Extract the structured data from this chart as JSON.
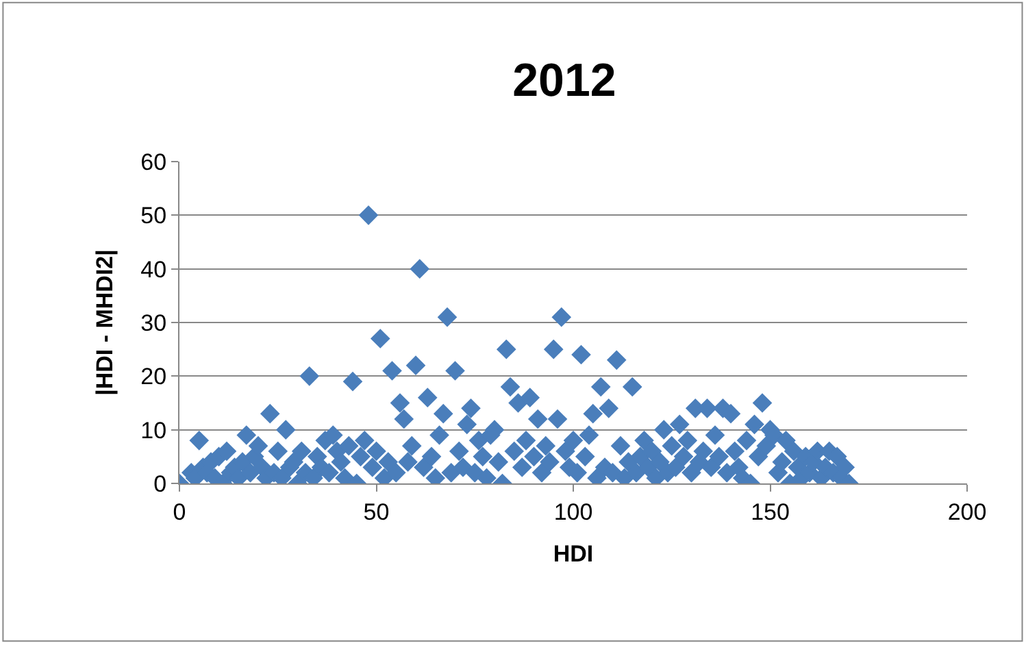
{
  "chart_data": {
    "type": "scatter",
    "title": "2012",
    "xlabel": "HDI",
    "ylabel": "|HDI - MHDI2|",
    "xlim": [
      0,
      200
    ],
    "xticks": [
      0,
      50,
      100,
      150,
      200
    ],
    "ylim": [
      0,
      60
    ],
    "yticks": [
      0,
      10,
      20,
      30,
      40,
      50,
      60
    ],
    "grid": "y",
    "marker": "diamond",
    "series": [
      {
        "color": "#4a7ebb",
        "x": [
          0,
          3,
          4,
          5,
          6,
          7,
          8,
          9,
          10,
          11,
          12,
          13,
          14,
          15,
          16,
          17,
          18,
          19,
          20,
          21,
          22,
          23,
          24,
          25,
          26,
          27,
          28,
          29,
          30,
          31,
          32,
          33,
          34,
          35,
          36,
          37,
          38,
          39,
          40,
          41,
          42,
          43,
          44,
          45,
          46,
          47,
          48,
          49,
          50,
          51,
          52,
          53,
          54,
          55,
          56,
          57,
          58,
          59,
          60,
          61,
          62,
          63,
          64,
          65,
          66,
          67,
          68,
          69,
          70,
          71,
          72,
          73,
          74,
          75,
          76,
          77,
          78,
          79,
          80,
          81,
          82,
          83,
          84,
          85,
          86,
          87,
          88,
          89,
          90,
          91,
          92,
          93,
          94,
          95,
          96,
          97,
          98,
          99,
          100,
          101,
          102,
          103,
          104,
          105,
          106,
          107,
          108,
          109,
          110,
          111,
          112,
          113,
          114,
          115,
          116,
          117,
          118,
          119,
          120,
          121,
          122,
          123,
          124,
          125,
          126,
          127,
          128,
          129,
          130,
          131,
          132,
          133,
          134,
          135,
          136,
          137,
          138,
          139,
          140,
          141,
          142,
          143,
          144,
          145,
          146,
          147,
          148,
          149,
          150,
          151,
          152,
          153,
          154,
          155,
          156,
          157,
          158,
          159,
          160,
          161,
          162,
          163,
          164,
          165,
          166,
          167,
          168,
          169,
          170
        ],
        "values": [
          0,
          2,
          1,
          8,
          3,
          2,
          4,
          1,
          5,
          0,
          6,
          2,
          3,
          1,
          4,
          9,
          2,
          5,
          7,
          3,
          1,
          13,
          2,
          6,
          1,
          10,
          3,
          4,
          0,
          6,
          2,
          20,
          1,
          5,
          3,
          8,
          2,
          9,
          6,
          4,
          1,
          7,
          19,
          0,
          5,
          8,
          50,
          3,
          6,
          27,
          1,
          4,
          21,
          2,
          15,
          12,
          4,
          7,
          22,
          40,
          3,
          16,
          5,
          1,
          9,
          13,
          31,
          2,
          21,
          6,
          3,
          11,
          14,
          2,
          8,
          5,
          1,
          9,
          10,
          4,
          0,
          25,
          18,
          6,
          15,
          3,
          8,
          16,
          5,
          12,
          2,
          7,
          4,
          25,
          12,
          31,
          6,
          3,
          8,
          2,
          24,
          5,
          9,
          13,
          1,
          18,
          3,
          14,
          2,
          23,
          7,
          1,
          4,
          18,
          2,
          5,
          8,
          3,
          6,
          1,
          4,
          10,
          2,
          7,
          3,
          11,
          5,
          8,
          2,
          14,
          4,
          6,
          14,
          3,
          9,
          5,
          14,
          2,
          13,
          6,
          3,
          1,
          8,
          0,
          11,
          5,
          15,
          7,
          10,
          9,
          2,
          4,
          8,
          0,
          6,
          3,
          1,
          5,
          2,
          4,
          6,
          1,
          3,
          6,
          2,
          5,
          1,
          3,
          0
        ]
      }
    ]
  }
}
